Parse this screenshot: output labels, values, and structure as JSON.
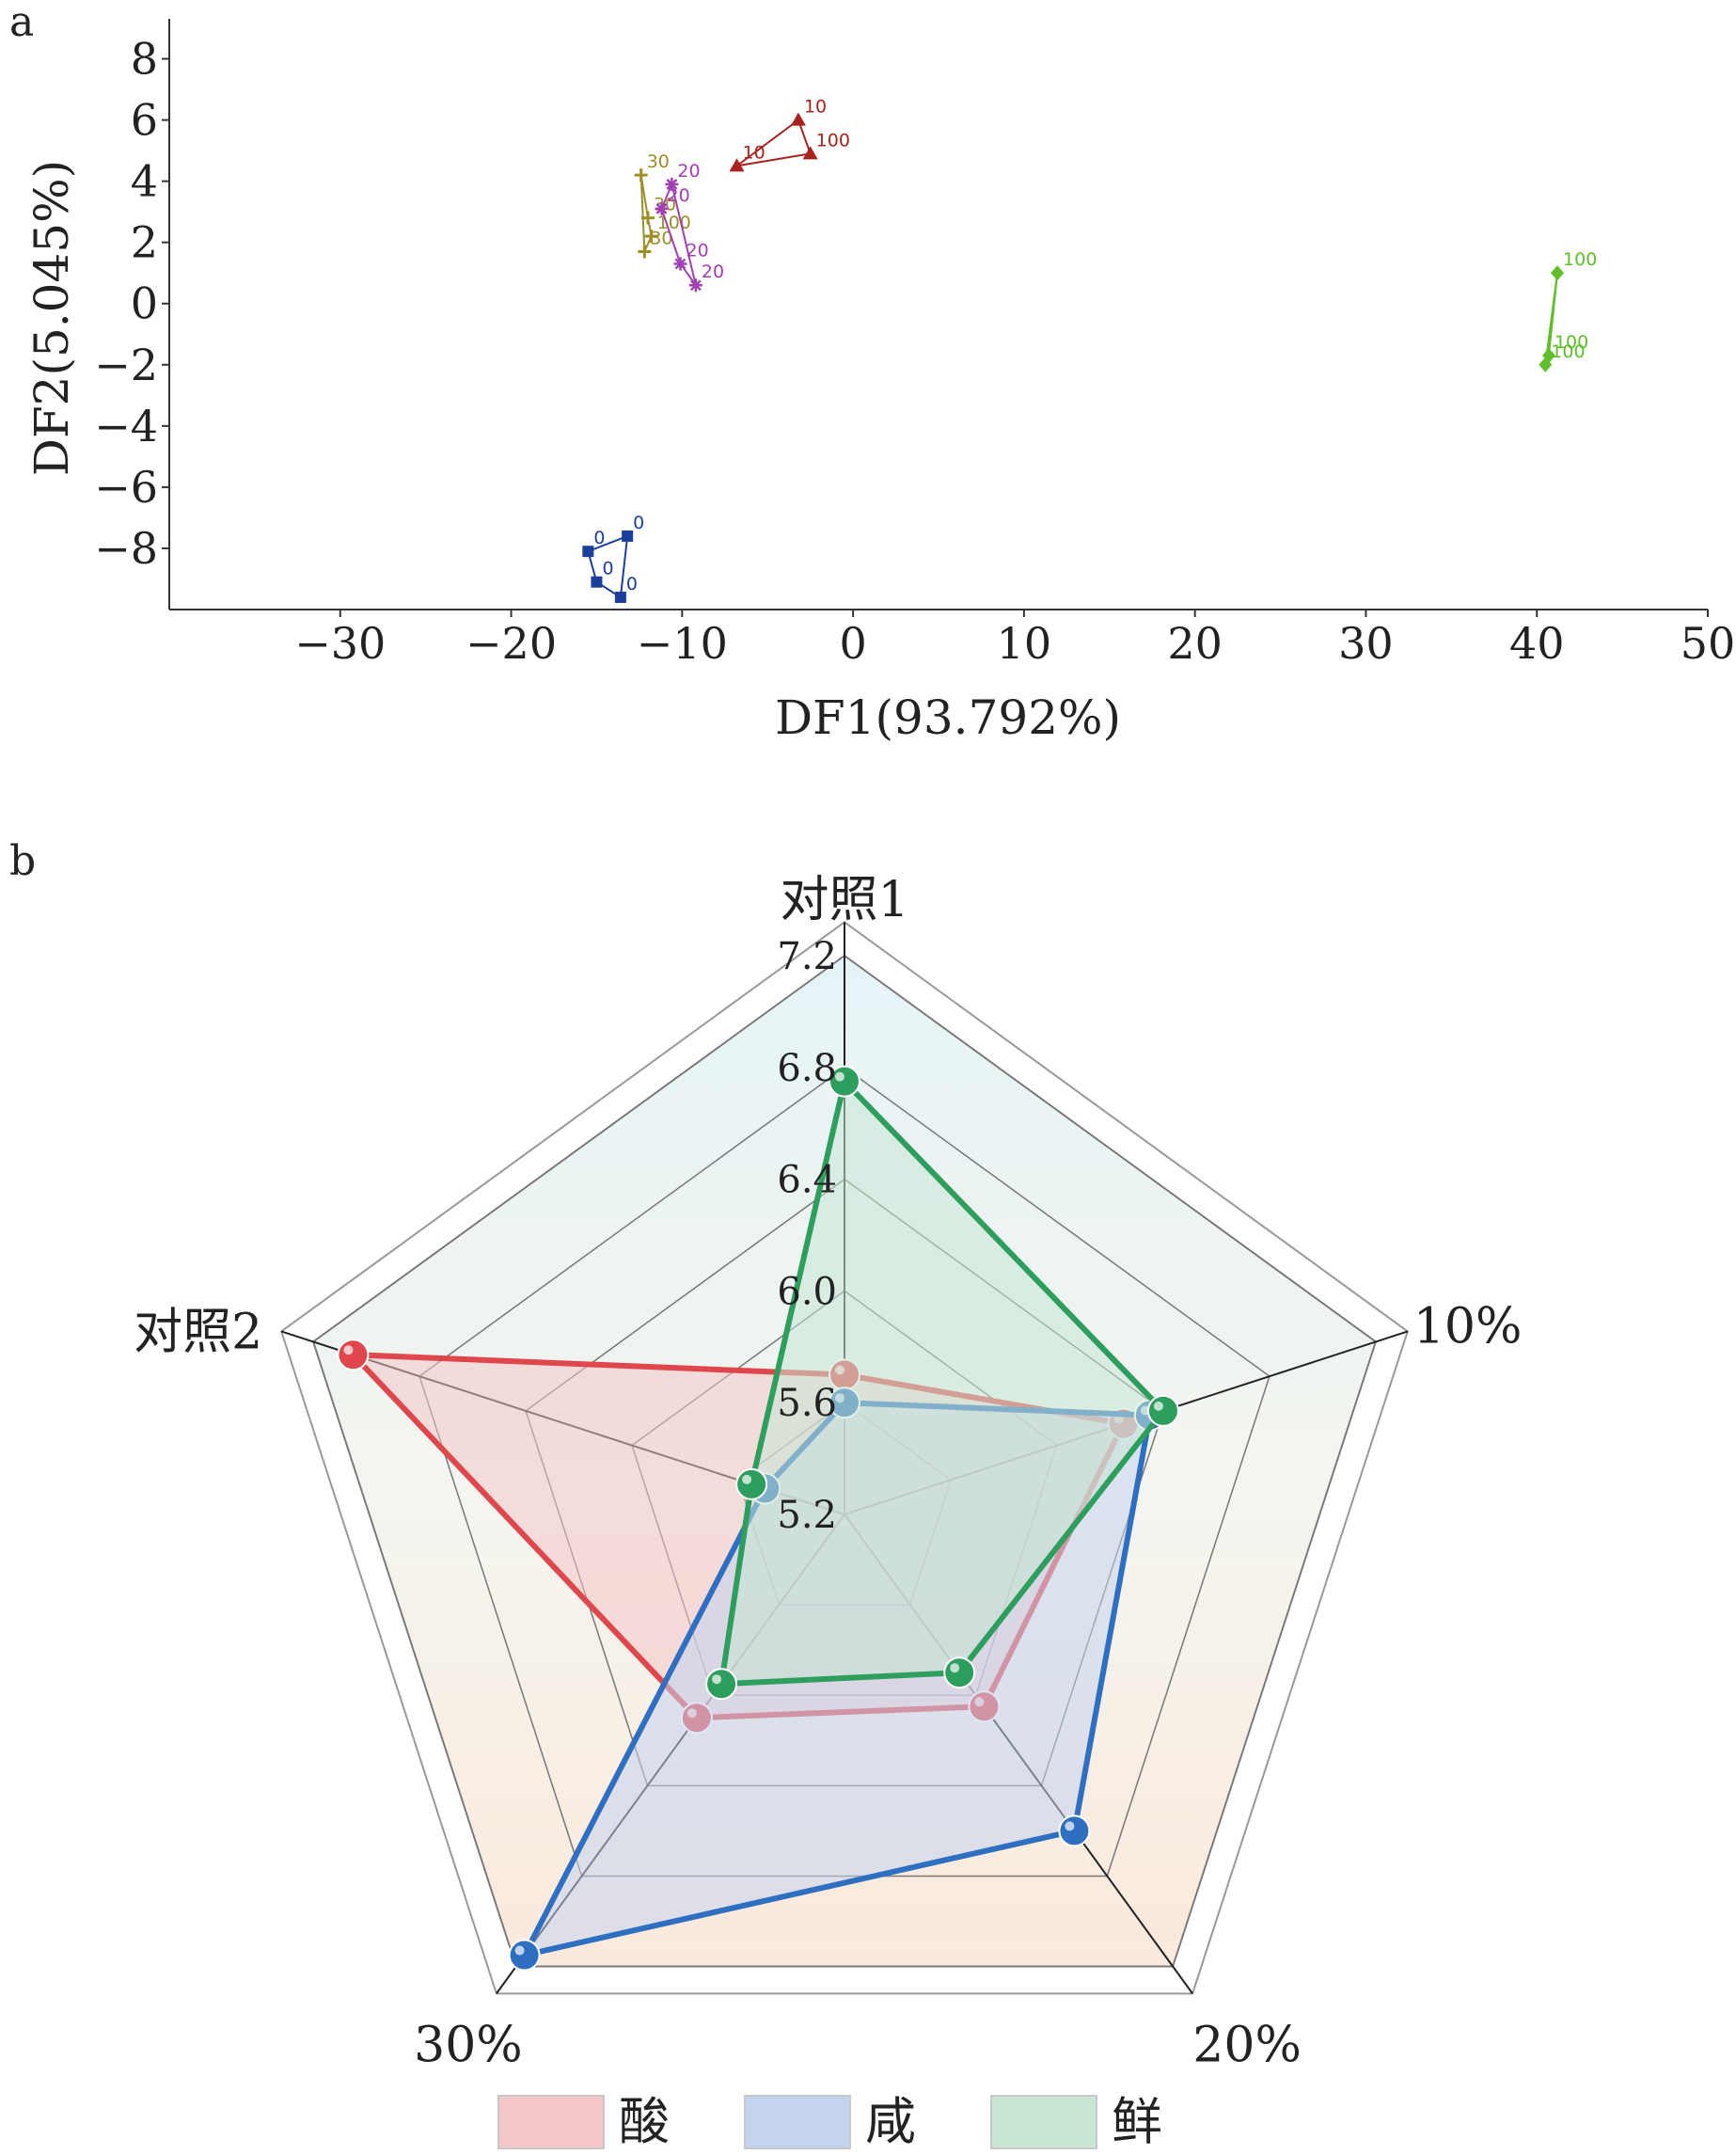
{
  "chart_data": [
    {
      "panel_label": "a",
      "type": "scatter",
      "xlabel": "DF1(93.792%)",
      "ylabel": "DF2(5.045%)",
      "xlim": [
        -40,
        50
      ],
      "ylim": [
        -10,
        9
      ],
      "xticks": [
        "−30",
        "−20",
        "−10",
        "0",
        "10",
        "20",
        "30",
        "40",
        "50"
      ],
      "yticks": [
        "8",
        "6",
        "4",
        "2",
        "0",
        "−2",
        "−4",
        "−6",
        "−8"
      ],
      "series": [
        {
          "color": "#1c3f9c",
          "marker": "square",
          "points": [
            {
              "x": -13.2,
              "y": -7.6,
              "label": "0"
            },
            {
              "x": -15.5,
              "y": -8.1,
              "label": "0"
            },
            {
              "x": -15.0,
              "y": -9.1,
              "label": "0"
            },
            {
              "x": -13.6,
              "y": -9.6,
              "label": "0"
            }
          ]
        },
        {
          "color": "#a8231f",
          "marker": "triangle",
          "points": [
            {
              "x": -3.2,
              "y": 6.0,
              "label": "10"
            },
            {
              "x": -2.5,
              "y": 4.9,
              "label": "100"
            },
            {
              "x": -6.8,
              "y": 4.5,
              "label": "10"
            }
          ]
        },
        {
          "color": "#9c8f2a",
          "marker": "plus",
          "points": [
            {
              "x": -12.4,
              "y": 4.2,
              "label": "30"
            },
            {
              "x": -12.0,
              "y": 2.8,
              "label": "30"
            },
            {
              "x": -11.8,
              "y": 2.2,
              "label": "100"
            },
            {
              "x": -12.2,
              "y": 1.7,
              "label": "30"
            }
          ]
        },
        {
          "color": "#a23fb4",
          "marker": "star",
          "points": [
            {
              "x": -10.6,
              "y": 3.9,
              "label": "20"
            },
            {
              "x": -11.2,
              "y": 3.1,
              "label": "20"
            },
            {
              "x": -10.1,
              "y": 1.3,
              "label": "20"
            },
            {
              "x": -9.2,
              "y": 0.6,
              "label": "20"
            }
          ]
        },
        {
          "color": "#5fbf2a",
          "marker": "diamond",
          "points": [
            {
              "x": 41.2,
              "y": 1.0,
              "label": "100"
            },
            {
              "x": 40.7,
              "y": -1.7,
              "label": "100"
            },
            {
              "x": 40.5,
              "y": -2.0,
              "label": "100"
            }
          ]
        }
      ]
    },
    {
      "panel_label": "b",
      "type": "radar",
      "axes": [
        "对照1",
        "10%",
        "20%",
        "30%",
        "对照2"
      ],
      "rlim": [
        5.2,
        7.2
      ],
      "rticks": [
        "5.2",
        "5.6",
        "6.0",
        "6.4",
        "6.8",
        "7.2"
      ],
      "legend_position": "bottom",
      "series": [
        {
          "name": "酸",
          "color": "#e0474c",
          "fill": "#f3c7c9",
          "values": [
            5.7,
            6.25,
            6.05,
            6.1,
            7.05
          ]
        },
        {
          "name": "咸",
          "color": "#2f6fc1",
          "fill": "#c5d4ee",
          "values": [
            5.6,
            6.35,
            6.6,
            7.15,
            5.5
          ]
        },
        {
          "name": "鲜",
          "color": "#2e9e5e",
          "fill": "#c7e6d3",
          "values": [
            6.75,
            6.4,
            5.9,
            5.95,
            5.55
          ]
        }
      ]
    }
  ]
}
